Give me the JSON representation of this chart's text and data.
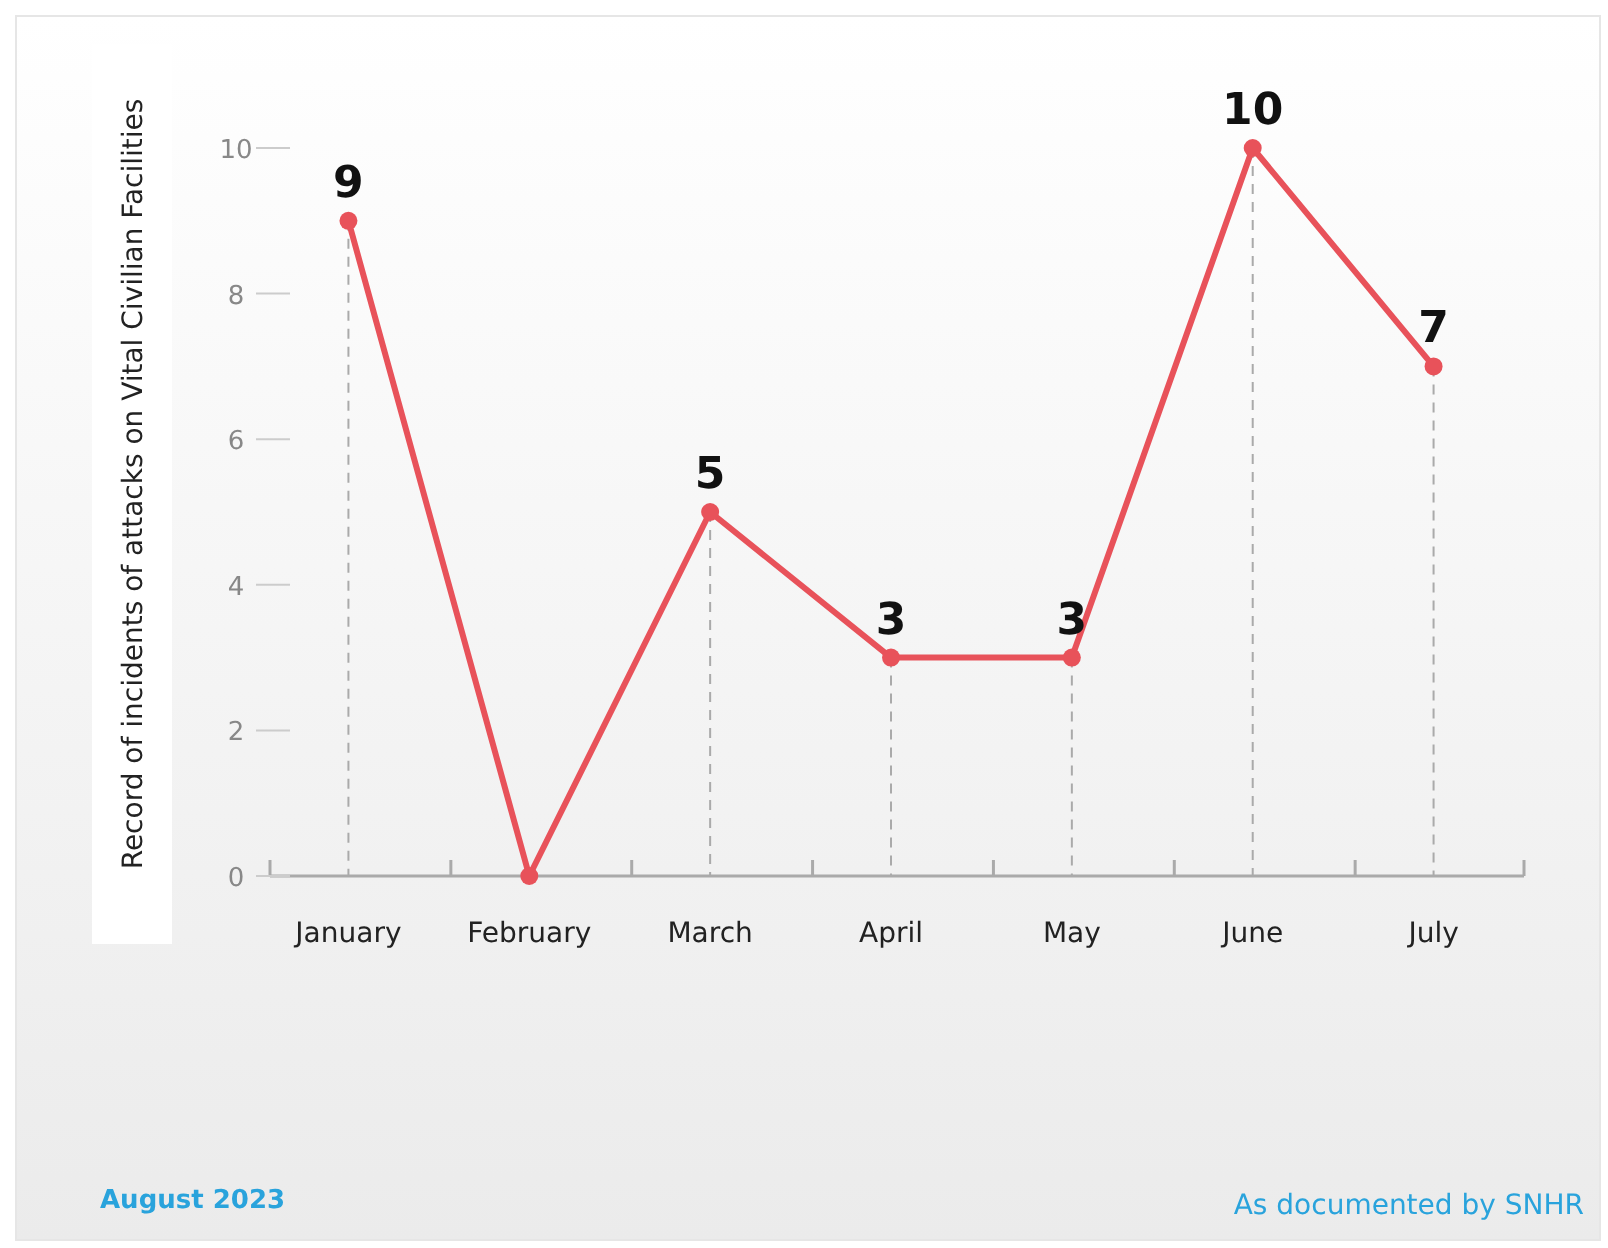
{
  "chart_data": {
    "type": "line",
    "ylabel": "Record of incidents of attacks on Vital Civilian Facilities",
    "categories": [
      "January",
      "February",
      "March",
      "April",
      "May",
      "June",
      "July"
    ],
    "series": [
      {
        "color": "#e8525a",
        "values": [
          9,
          0,
          5,
          3,
          3,
          10,
          7
        ],
        "value_labels": [
          "9",
          null,
          "5",
          "3",
          "3",
          "10",
          "7"
        ]
      }
    ],
    "ylim": [
      0,
      10
    ],
    "yticks": [
      0,
      2,
      4,
      6,
      8,
      10
    ],
    "grid": "x",
    "marker": "circle",
    "line_style": "solid",
    "annotations": [
      "August 2023",
      "As documented by SNHR"
    ]
  }
}
